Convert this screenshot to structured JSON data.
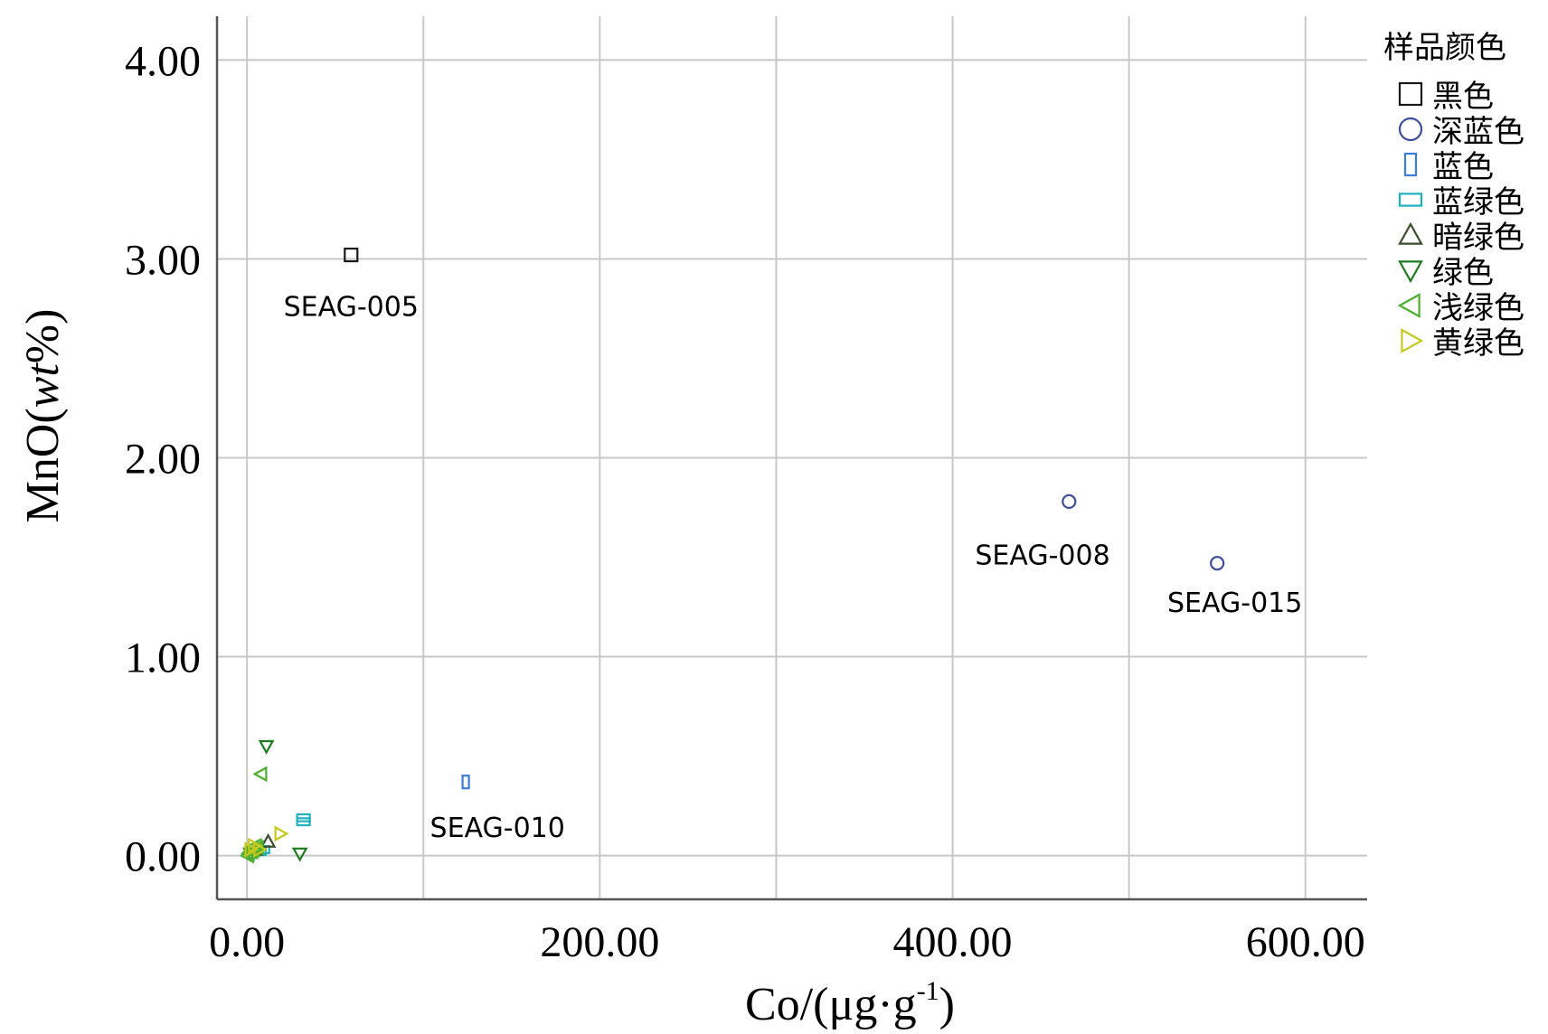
{
  "chart_data": {
    "type": "scatter",
    "xlabel": "Co/(μg·g",
    "xlabel_sup": "-1",
    "xlabel_end": ")",
    "ylabel": "MnO(",
    "ylabel_italic": "wt",
    "ylabel_end": "%)",
    "xlim": [
      -17,
      635
    ],
    "ylim": [
      -0.22,
      4.22
    ],
    "x_ticks": [
      0,
      200,
      400,
      600
    ],
    "x_tick_labels": [
      "0.00",
      "200.00",
      "400.00",
      "600.00"
    ],
    "x_grid": [
      0,
      100,
      200,
      300,
      400,
      500,
      600
    ],
    "y_ticks": [
      0,
      1,
      2,
      3,
      4
    ],
    "y_tick_labels": [
      "0.00",
      "1.00",
      "2.00",
      "3.00",
      "4.00"
    ],
    "grid": true,
    "legend_placement": "right",
    "legend_title": "样品颜色",
    "series": [
      {
        "name": "黑色",
        "marker": "square",
        "color": "#1a1a1a",
        "points": [
          [
            59,
            3.02
          ]
        ]
      },
      {
        "name": "深蓝色",
        "marker": "circle",
        "color": "#3d4f9c",
        "points": [
          [
            466,
            1.78
          ],
          [
            550,
            1.47
          ]
        ]
      },
      {
        "name": "蓝色",
        "marker": "rect-tall",
        "color": "#3b7dd8",
        "points": [
          [
            124,
            0.37
          ]
        ]
      },
      {
        "name": "蓝绿色",
        "marker": "rect-wide",
        "color": "#1fb1bf",
        "points": [
          [
            32,
            0.19
          ],
          [
            32,
            0.17
          ],
          [
            9,
            0.03
          ],
          [
            7,
            0.02
          ]
        ]
      },
      {
        "name": "暗绿色",
        "marker": "triangle-up",
        "color": "#3b4d2a",
        "points": [
          [
            12,
            0.07
          ],
          [
            5,
            0.03
          ]
        ]
      },
      {
        "name": "绿色",
        "marker": "triangle-down",
        "color": "#1e7a1e",
        "points": [
          [
            11,
            0.55
          ],
          [
            30,
            0.01
          ],
          [
            2,
            0.01
          ]
        ]
      },
      {
        "name": "浅绿色",
        "marker": "triangle-left",
        "color": "#4caf30",
        "points": [
          [
            8,
            0.41
          ],
          [
            3,
            0.02
          ],
          [
            4,
            0.03
          ],
          [
            6,
            0.04
          ],
          [
            1,
            0.01
          ],
          [
            2,
            0.02
          ],
          [
            5,
            0.05
          ],
          [
            3,
            0.04
          ],
          [
            0.5,
            0.0
          ]
        ]
      },
      {
        "name": "黄绿色",
        "marker": "triangle-right",
        "color": "#c5c91f",
        "points": [
          [
            19,
            0.11
          ],
          [
            4,
            0.05
          ],
          [
            7,
            0.03
          ],
          [
            2,
            0.03
          ]
        ]
      }
    ],
    "annotations": [
      {
        "text": "SEAG-005",
        "x": 59,
        "y": 2.76
      },
      {
        "text": "SEAG-008",
        "x": 451,
        "y": 1.51
      },
      {
        "text": "SEAG-015",
        "x": 560,
        "y": 1.27
      },
      {
        "text": "SEAG-010",
        "x": 142,
        "y": 0.14
      }
    ]
  }
}
